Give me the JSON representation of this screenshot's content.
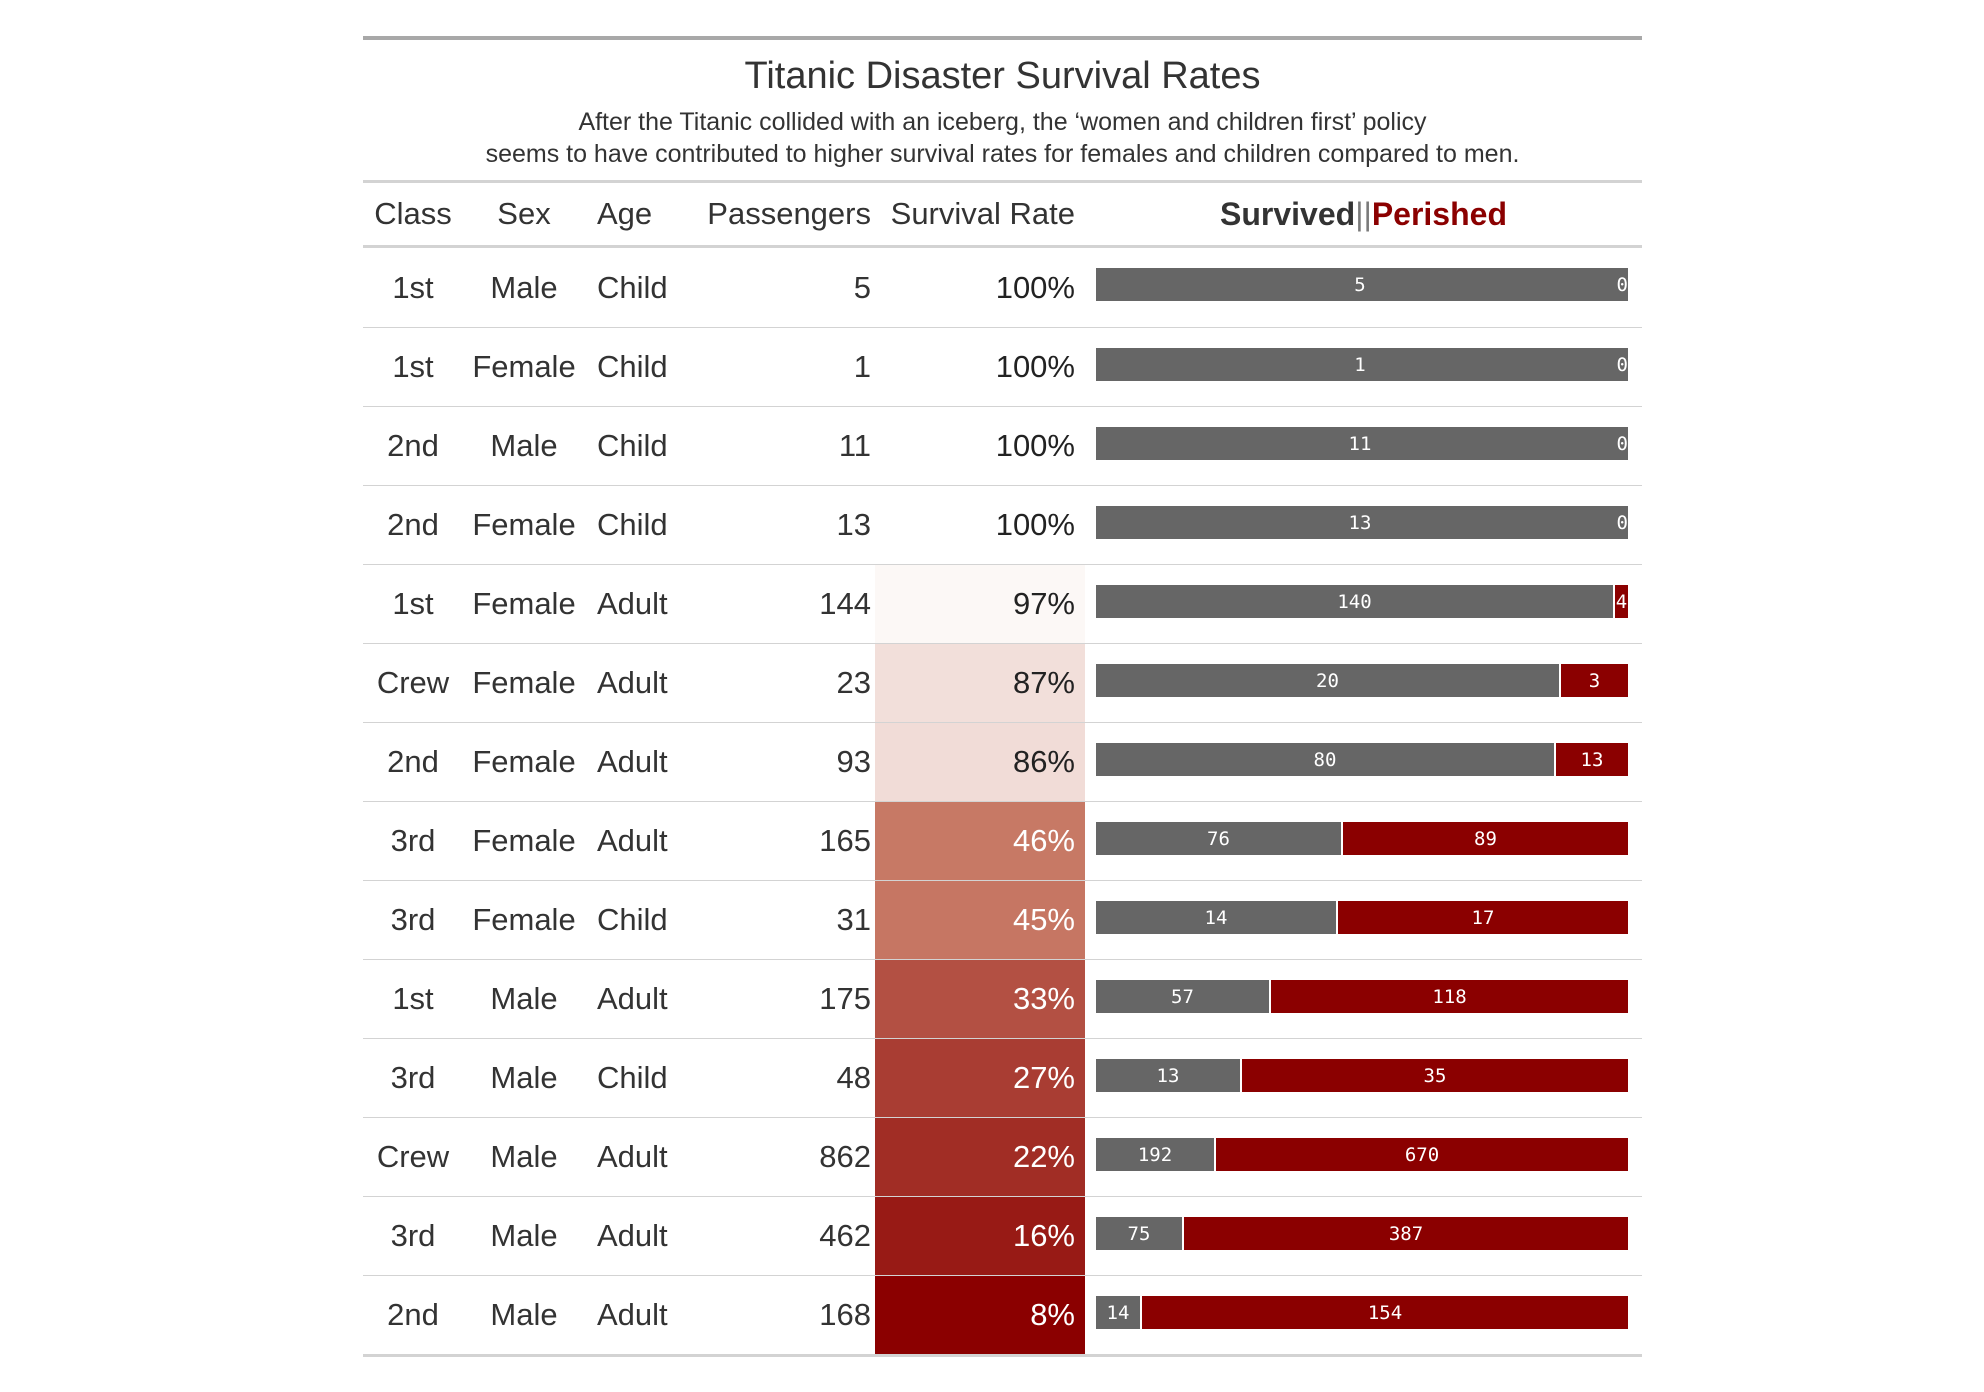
{
  "title": "Titanic Disaster Survival Rates",
  "subtitle_line1": "After the Titanic collided with an iceberg, the ‘women and children first’ policy",
  "subtitle_line2": "seems to have contributed to higher survival rates for females and children compared to men.",
  "columns": {
    "class": "Class",
    "sex": "Sex",
    "age": "Age",
    "passengers": "Passengers",
    "survival_rate": "Survival Rate"
  },
  "legend": {
    "survived": "Survived",
    "separator": "||",
    "perished": "Perished"
  },
  "colors": {
    "survived": "#666666",
    "perished": "#8b0000",
    "rate_high": "#ffffff",
    "rate_low": "#8b0000"
  },
  "chart_data": {
    "type": "bar",
    "stacked": true,
    "categories": [
      "1st Male Child",
      "1st Female Child",
      "2nd Male Child",
      "2nd Female Child",
      "1st Female Adult",
      "Crew Female Adult",
      "2nd Female Adult",
      "3rd Female Adult",
      "3rd Female Child",
      "1st Male Adult",
      "3rd Male Child",
      "Crew Male Adult",
      "3rd Male Adult",
      "2nd Male Adult"
    ],
    "series": [
      {
        "name": "Survived",
        "values": [
          5,
          1,
          11,
          13,
          140,
          20,
          80,
          76,
          14,
          57,
          13,
          192,
          75,
          14
        ]
      },
      {
        "name": "Perished",
        "values": [
          0,
          0,
          0,
          0,
          4,
          3,
          13,
          89,
          17,
          118,
          35,
          670,
          387,
          154
        ]
      }
    ]
  },
  "rows": [
    {
      "class": "1st",
      "sex": "Male",
      "age": "Child",
      "passengers": "5",
      "rate_label": "100%",
      "rate": 1.0,
      "survived": 5,
      "perished": 0,
      "survived_label": "5",
      "perished_label": "0"
    },
    {
      "class": "1st",
      "sex": "Female",
      "age": "Child",
      "passengers": "1",
      "rate_label": "100%",
      "rate": 1.0,
      "survived": 1,
      "perished": 0,
      "survived_label": "1",
      "perished_label": "0"
    },
    {
      "class": "2nd",
      "sex": "Male",
      "age": "Child",
      "passengers": "11",
      "rate_label": "100%",
      "rate": 1.0,
      "survived": 11,
      "perished": 0,
      "survived_label": "11",
      "perished_label": "0"
    },
    {
      "class": "2nd",
      "sex": "Female",
      "age": "Child",
      "passengers": "13",
      "rate_label": "100%",
      "rate": 1.0,
      "survived": 13,
      "perished": 0,
      "survived_label": "13",
      "perished_label": "0"
    },
    {
      "class": "1st",
      "sex": "Female",
      "age": "Adult",
      "passengers": "144",
      "rate_label": "97%",
      "rate": 0.97,
      "survived": 140,
      "perished": 4,
      "survived_label": "140",
      "perished_label": "4"
    },
    {
      "class": "Crew",
      "sex": "Female",
      "age": "Adult",
      "passengers": "23",
      "rate_label": "87%",
      "rate": 0.87,
      "survived": 20,
      "perished": 3,
      "survived_label": "20",
      "perished_label": "3"
    },
    {
      "class": "2nd",
      "sex": "Female",
      "age": "Adult",
      "passengers": "93",
      "rate_label": "86%",
      "rate": 0.86,
      "survived": 80,
      "perished": 13,
      "survived_label": "80",
      "perished_label": "13"
    },
    {
      "class": "3rd",
      "sex": "Female",
      "age": "Adult",
      "passengers": "165",
      "rate_label": "46%",
      "rate": 0.46,
      "survived": 76,
      "perished": 89,
      "survived_label": "76",
      "perished_label": "89"
    },
    {
      "class": "3rd",
      "sex": "Female",
      "age": "Child",
      "passengers": "31",
      "rate_label": "45%",
      "rate": 0.45,
      "survived": 14,
      "perished": 17,
      "survived_label": "14",
      "perished_label": "17"
    },
    {
      "class": "1st",
      "sex": "Male",
      "age": "Adult",
      "passengers": "175",
      "rate_label": "33%",
      "rate": 0.33,
      "survived": 57,
      "perished": 118,
      "survived_label": "57",
      "perished_label": "118"
    },
    {
      "class": "3rd",
      "sex": "Male",
      "age": "Child",
      "passengers": "48",
      "rate_label": "27%",
      "rate": 0.27,
      "survived": 13,
      "perished": 35,
      "survived_label": "13",
      "perished_label": "35"
    },
    {
      "class": "Crew",
      "sex": "Male",
      "age": "Adult",
      "passengers": "862",
      "rate_label": "22%",
      "rate": 0.22,
      "survived": 192,
      "perished": 670,
      "survived_label": "192",
      "perished_label": "670"
    },
    {
      "class": "3rd",
      "sex": "Male",
      "age": "Adult",
      "passengers": "462",
      "rate_label": "16%",
      "rate": 0.16,
      "survived": 75,
      "perished": 387,
      "survived_label": "75",
      "perished_label": "387"
    },
    {
      "class": "2nd",
      "sex": "Male",
      "age": "Adult",
      "passengers": "168",
      "rate_label": "8%",
      "rate": 0.08,
      "survived": 14,
      "perished": 154,
      "survived_label": "14",
      "perished_label": "154"
    }
  ]
}
